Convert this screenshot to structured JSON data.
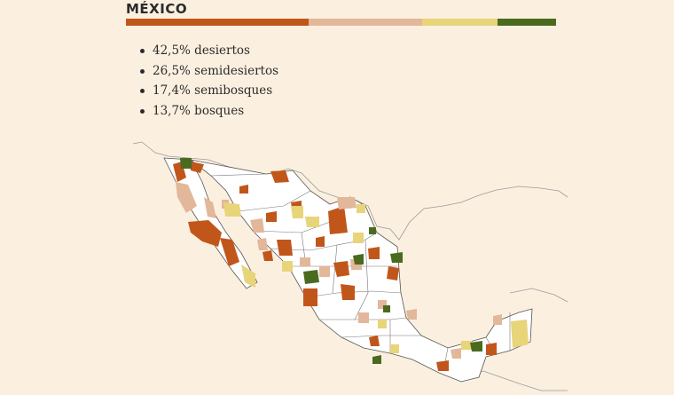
{
  "title": "MÉXICO",
  "colors": {
    "desiertos": "#c1561b",
    "semidesiertos": "#e3b79a",
    "semibosques": "#e8d479",
    "bosques": "#4a6b1f",
    "background": "#fbf0e0"
  },
  "stripe": [
    {
      "name": "desiertos",
      "share": 42.5
    },
    {
      "name": "semidesiertos",
      "share": 26.5
    },
    {
      "name": "semibosques",
      "share": 17.4
    },
    {
      "name": "bosques",
      "share": 13.7
    }
  ],
  "legend": [
    {
      "label": "42,5% desiertos"
    },
    {
      "label": "26,5% semidesiertos"
    },
    {
      "label": "17,4% semibosques"
    },
    {
      "label": "13,7% bosques"
    }
  ]
}
